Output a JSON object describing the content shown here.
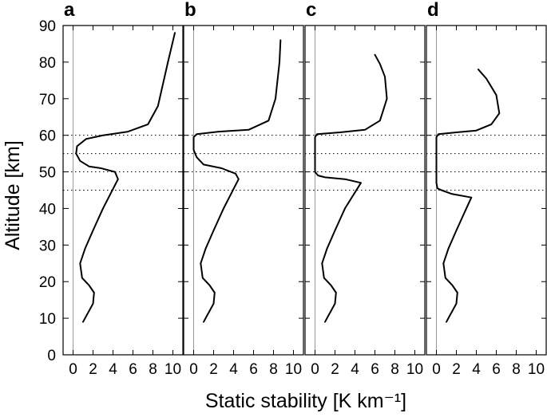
{
  "chart_data": {
    "type": "line",
    "xlabel": "Static stability [K km⁻¹]",
    "ylabel": "Altitude [km]",
    "xlim": [
      -1,
      11
    ],
    "ylim": [
      0,
      90
    ],
    "x_ticks": [
      0,
      2,
      4,
      6,
      8,
      10
    ],
    "y_ticks": [
      0,
      10,
      20,
      30,
      40,
      50,
      60,
      70,
      80,
      90
    ],
    "reference_lines_km": [
      45,
      50,
      55,
      60
    ],
    "grid": false,
    "panels": [
      {
        "label": "a",
        "x": [
          1.0,
          2.0,
          2.1,
          1.6,
          0.9,
          0.7,
          1.2,
          2.0,
          3.0,
          4.5,
          4.2,
          2.8,
          1.6,
          0.7,
          0.3,
          0.4,
          1.3,
          3.0,
          5.5,
          7.5,
          8.5,
          9.5,
          10.2
        ],
        "y": [
          9,
          14,
          17,
          19,
          21,
          25,
          29,
          34,
          40,
          48,
          50,
          51,
          51.5,
          53,
          55,
          57,
          59,
          60,
          61,
          63,
          68,
          80,
          88
        ]
      },
      {
        "label": "b",
        "x": [
          1.0,
          2.0,
          2.1,
          1.6,
          0.9,
          0.7,
          1.2,
          2.0,
          3.0,
          4.5,
          4.2,
          2.8,
          1.0,
          0.3,
          0.0,
          0.0,
          0.3,
          2.5,
          5.5,
          7.5,
          8.2,
          8.6,
          8.7
        ],
        "y": [
          9,
          14,
          17,
          19,
          21,
          25,
          29,
          34,
          40,
          48,
          49.5,
          51,
          52,
          54,
          56,
          59.5,
          60.3,
          61,
          61.5,
          64,
          70,
          80,
          86
        ]
      },
      {
        "label": "c",
        "x": [
          1.0,
          2.0,
          2.1,
          1.6,
          0.9,
          0.7,
          1.2,
          2.0,
          3.0,
          4.6,
          3.0,
          1.0,
          0.3,
          0.0,
          0.0,
          0.2,
          2.5,
          5.0,
          6.5,
          7.2,
          7.0,
          6.5,
          6.0
        ],
        "y": [
          9,
          14,
          17,
          19,
          21,
          25,
          29,
          34,
          40,
          47,
          48,
          48.5,
          49,
          50,
          59.5,
          60.3,
          60.8,
          61.5,
          64,
          70,
          76,
          79.5,
          82
        ]
      },
      {
        "label": "d",
        "x": [
          1.0,
          2.0,
          2.1,
          1.6,
          0.9,
          0.7,
          1.2,
          2.0,
          3.0,
          3.5,
          1.5,
          0.5,
          0.1,
          0.0,
          0.0,
          0.2,
          2.0,
          4.0,
          5.5,
          6.3,
          6.0,
          5.0,
          4.2
        ],
        "y": [
          9,
          14,
          17,
          19,
          21,
          25,
          29,
          34,
          40,
          43,
          44,
          45,
          45.5,
          47,
          59.5,
          60.3,
          60.8,
          61.3,
          63,
          66,
          71,
          75.5,
          78
        ]
      }
    ]
  }
}
